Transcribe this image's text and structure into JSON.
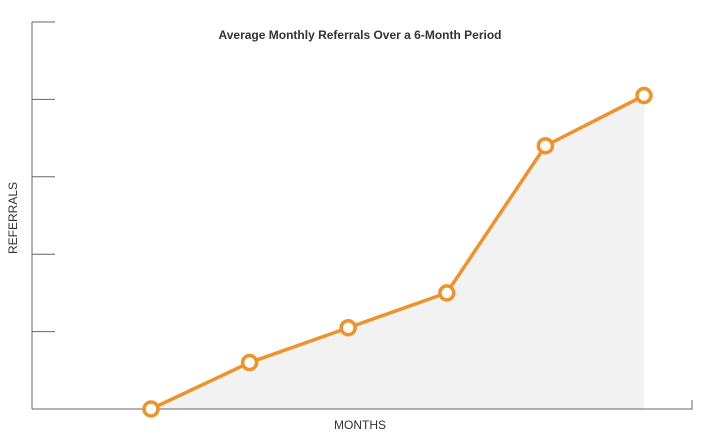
{
  "chart_data": {
    "type": "line",
    "title": "Average Monthly Referrals Over a 6-Month Period",
    "x_label": "MONTHS",
    "y_label": "REFERRALS",
    "categories": [
      null,
      null,
      null,
      null,
      null,
      null
    ],
    "values": [
      0,
      0.6,
      1.05,
      1.5,
      3.4,
      4.05
    ],
    "color": "#f0922b",
    "area_color": "#f2f2f2",
    "ylim": [
      0,
      5
    ],
    "yticks": [
      0,
      1,
      2,
      3,
      4,
      5
    ]
  }
}
